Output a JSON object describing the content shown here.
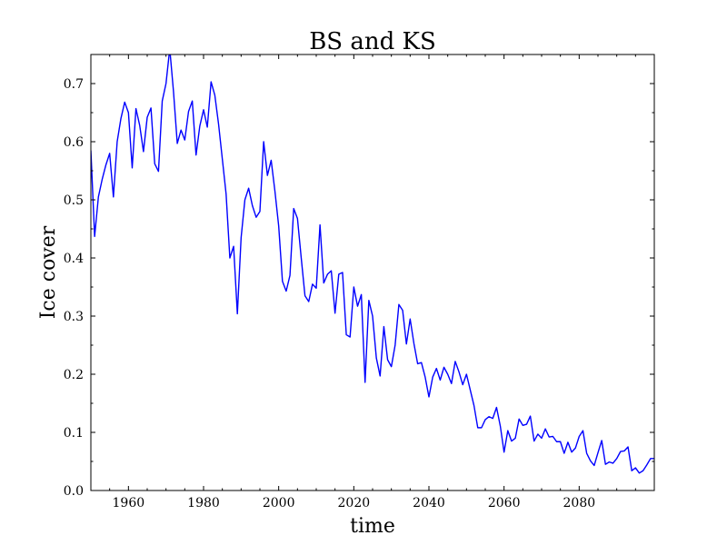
{
  "chart_data": {
    "type": "line",
    "title": "BS and KS",
    "xlabel": "time",
    "ylabel": "Ice cover",
    "xlim": [
      1950,
      2100
    ],
    "ylim": [
      0.0,
      0.75
    ],
    "xticks": [
      1960,
      1980,
      2000,
      2020,
      2040,
      2060,
      2080
    ],
    "yticks": [
      0.0,
      0.1,
      0.2,
      0.3,
      0.4,
      0.5,
      0.6,
      0.7
    ],
    "ytick_labels": [
      "0.0",
      "0.1",
      "0.2",
      "0.3",
      "0.4",
      "0.5",
      "0.6",
      "0.7"
    ],
    "grid": false,
    "legend": false,
    "colors": {
      "series": "#0000ff",
      "frame": "#000000"
    },
    "x": [
      1950,
      1951,
      1952,
      1953,
      1954,
      1955,
      1956,
      1957,
      1958,
      1959,
      1960,
      1961,
      1962,
      1963,
      1964,
      1965,
      1966,
      1967,
      1968,
      1969,
      1970,
      1971,
      1972,
      1973,
      1974,
      1975,
      1976,
      1977,
      1978,
      1979,
      1980,
      1981,
      1982,
      1983,
      1984,
      1985,
      1986,
      1987,
      1988,
      1989,
      1990,
      1991,
      1992,
      1993,
      1994,
      1995,
      1996,
      1997,
      1998,
      1999,
      2000,
      2001,
      2002,
      2003,
      2004,
      2005,
      2006,
      2007,
      2008,
      2009,
      2010,
      2011,
      2012,
      2013,
      2014,
      2015,
      2016,
      2017,
      2018,
      2019,
      2020,
      2021,
      2022,
      2023,
      2024,
      2025,
      2026,
      2027,
      2028,
      2029,
      2030,
      2031,
      2032,
      2033,
      2034,
      2035,
      2036,
      2037,
      2038,
      2039,
      2040,
      2041,
      2042,
      2043,
      2044,
      2045,
      2046,
      2047,
      2048,
      2049,
      2050,
      2051,
      2052,
      2053,
      2054,
      2055,
      2056,
      2057,
      2058,
      2059,
      2060,
      2061,
      2062,
      2063,
      2064,
      2065,
      2066,
      2067,
      2068,
      2069,
      2070,
      2071,
      2072,
      2073,
      2074,
      2075,
      2076,
      2077,
      2078,
      2079,
      2080,
      2081,
      2082,
      2083,
      2084,
      2085,
      2086,
      2087,
      2088,
      2089,
      2090,
      2091,
      2092,
      2093,
      2094,
      2095,
      2096,
      2097,
      2098,
      2099,
      2100
    ],
    "series": [
      {
        "values": [
          0.585,
          0.437,
          0.505,
          0.535,
          0.56,
          0.58,
          0.505,
          0.6,
          0.64,
          0.668,
          0.65,
          0.555,
          0.657,
          0.628,
          0.583,
          0.642,
          0.658,
          0.562,
          0.549,
          0.67,
          0.7,
          0.76,
          0.686,
          0.597,
          0.62,
          0.603,
          0.652,
          0.67,
          0.577,
          0.627,
          0.655,
          0.625,
          0.703,
          0.68,
          0.63,
          0.57,
          0.51,
          0.4,
          0.42,
          0.304,
          0.435,
          0.5,
          0.52,
          0.49,
          0.47,
          0.48,
          0.6,
          0.542,
          0.568,
          0.515,
          0.455,
          0.36,
          0.343,
          0.37,
          0.485,
          0.468,
          0.4,
          0.335,
          0.325,
          0.355,
          0.348,
          0.457,
          0.357,
          0.372,
          0.378,
          0.305,
          0.372,
          0.375,
          0.268,
          0.264,
          0.35,
          0.317,
          0.337,
          0.186,
          0.327,
          0.3,
          0.228,
          0.197,
          0.282,
          0.225,
          0.213,
          0.25,
          0.32,
          0.31,
          0.252,
          0.295,
          0.253,
          0.218,
          0.22,
          0.195,
          0.161,
          0.195,
          0.21,
          0.19,
          0.212,
          0.2,
          0.184,
          0.222,
          0.204,
          0.182,
          0.2,
          0.173,
          0.146,
          0.108,
          0.108,
          0.122,
          0.127,
          0.124,
          0.143,
          0.111,
          0.066,
          0.103,
          0.085,
          0.09,
          0.123,
          0.112,
          0.114,
          0.128,
          0.085,
          0.097,
          0.09,
          0.106,
          0.092,
          0.093,
          0.084,
          0.084,
          0.064,
          0.083,
          0.066,
          0.073,
          0.093,
          0.103,
          0.064,
          0.051,
          0.043,
          0.065,
          0.086,
          0.045,
          0.049,
          0.047,
          0.055,
          0.067,
          0.068,
          0.075,
          0.034,
          0.039,
          0.03,
          0.034,
          0.044,
          0.055,
          0.055
        ]
      }
    ]
  }
}
